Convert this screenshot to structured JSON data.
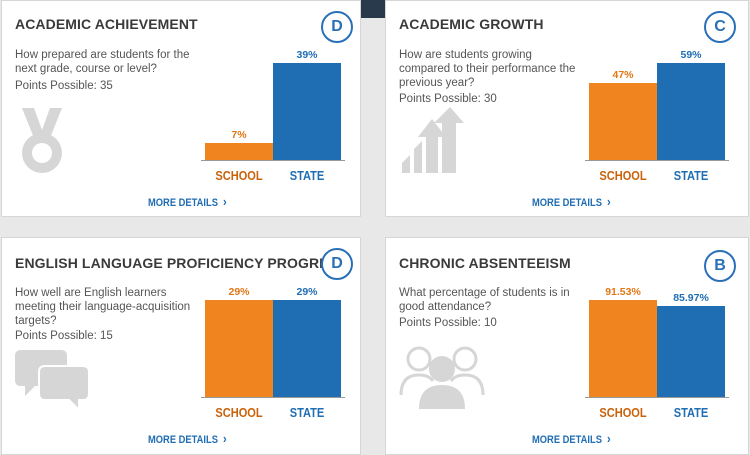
{
  "cards": [
    {
      "title": "ACADEMIC ACHIEVEMENT",
      "grade": "D",
      "question": [
        "How prepared are students for the",
        "next grade, course or level?"
      ],
      "points": "Points Possible: 35",
      "icon": "medal-icon",
      "school_label": "SCHOOL",
      "state_label": "STATE",
      "more": "MORE DETAILS",
      "school_value": 7,
      "school_text": "7%",
      "state_value": 39,
      "state_text": "39%"
    },
    {
      "title": "ACADEMIC GROWTH",
      "grade": "C",
      "question": [
        "How are students growing",
        "compared to their performance the",
        "previous year?"
      ],
      "points": "Points Possible: 30",
      "icon": "growth-arrows-icon",
      "school_label": "SCHOOL",
      "state_label": "STATE",
      "more": "MORE DETAILS",
      "school_value": 47,
      "school_text": "47%",
      "state_value": 59,
      "state_text": "59%"
    },
    {
      "title": "ENGLISH LANGUAGE PROFICIENCY PROGRESS",
      "grade": "D",
      "question": [
        "How well are English learners",
        "meeting their language-acquisition",
        "targets?"
      ],
      "points": "Points Possible: 15",
      "icon": "speech-bubbles-icon",
      "school_label": "SCHOOL",
      "state_label": "STATE",
      "more": "MORE DETAILS",
      "school_value": 29,
      "school_text": "29%",
      "state_value": 29,
      "state_text": "29%"
    },
    {
      "title": "CHRONIC ABSENTEEISM",
      "grade": "B",
      "question": [
        "What percentage of students is in",
        "good attendance?"
      ],
      "points": "Points Possible: 10",
      "icon": "people-group-icon",
      "school_label": "SCHOOL",
      "state_label": "STATE",
      "more": "MORE DETAILS",
      "school_value": 91.53,
      "school_text": "91.53%",
      "state_value": 85.97,
      "state_text": "85.97%"
    }
  ],
  "colors": {
    "school": "#f0851f",
    "state": "#1f6db3",
    "grade_ring": "#2a70b8",
    "icon_gray": "#d6d6d6"
  }
}
